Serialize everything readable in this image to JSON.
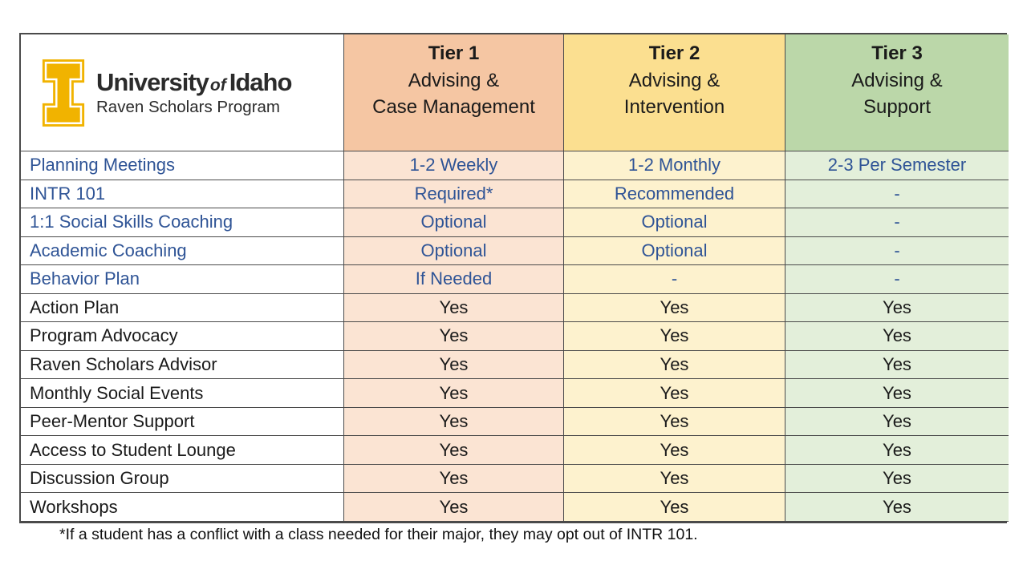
{
  "brand": {
    "name_university": "University",
    "name_of": "of",
    "name_idaho": "Idaho",
    "subtitle": "Raven Scholars Program"
  },
  "columns": [
    {
      "tier": "Tier 1",
      "line2": "Advising &",
      "line3": "Case Management",
      "header_bg": "#f5c6a3",
      "body_bg": "#fbe4d3"
    },
    {
      "tier": "Tier 2",
      "line2": "Advising &",
      "line3": "Intervention",
      "header_bg": "#fbdf90",
      "body_bg": "#fdf2ce"
    },
    {
      "tier": "Tier 3",
      "line2": "Advising &",
      "line3": "Support",
      "header_bg": "#bbd7a9",
      "body_bg": "#e3efda"
    }
  ],
  "rows": [
    {
      "label": "Planning Meetings",
      "values": [
        "1-2 Weekly",
        "1-2 Monthly",
        "2-3 Per Semester"
      ],
      "style": "blue"
    },
    {
      "label": "INTR 101",
      "values": [
        "Required*",
        "Recommended",
        "-"
      ],
      "style": "blue"
    },
    {
      "label": "1:1 Social Skills Coaching",
      "values": [
        "Optional",
        "Optional",
        "-"
      ],
      "style": "blue"
    },
    {
      "label": "Academic Coaching",
      "values": [
        "Optional",
        "Optional",
        "-"
      ],
      "style": "blue"
    },
    {
      "label": "Behavior Plan",
      "values": [
        "If Needed",
        "-",
        "-"
      ],
      "style": "blue"
    },
    {
      "label": "Action Plan",
      "values": [
        "Yes",
        "Yes",
        "Yes"
      ],
      "style": "black"
    },
    {
      "label": "Program Advocacy",
      "values": [
        "Yes",
        "Yes",
        "Yes"
      ],
      "style": "black"
    },
    {
      "label": "Raven Scholars Advisor",
      "values": [
        "Yes",
        "Yes",
        "Yes"
      ],
      "style": "black"
    },
    {
      "label": "Monthly Social Events",
      "values": [
        "Yes",
        "Yes",
        "Yes"
      ],
      "style": "black"
    },
    {
      "label": "Peer-Mentor Support",
      "values": [
        "Yes",
        "Yes",
        "Yes"
      ],
      "style": "black"
    },
    {
      "label": "Access to Student Lounge",
      "values": [
        "Yes",
        "Yes",
        "Yes"
      ],
      "style": "black"
    },
    {
      "label": "Discussion Group",
      "values": [
        "Yes",
        "Yes",
        "Yes"
      ],
      "style": "black"
    },
    {
      "label": "Workshops",
      "values": [
        "Yes",
        "Yes",
        "Yes"
      ],
      "style": "black"
    }
  ],
  "footnote": "*If a student has a conflict with a class needed for their major, they may opt out of INTR 101.",
  "colors": {
    "blue_text": "#2F5496",
    "idaho_gold": "#F1B300",
    "border": "#4a4a4a"
  }
}
